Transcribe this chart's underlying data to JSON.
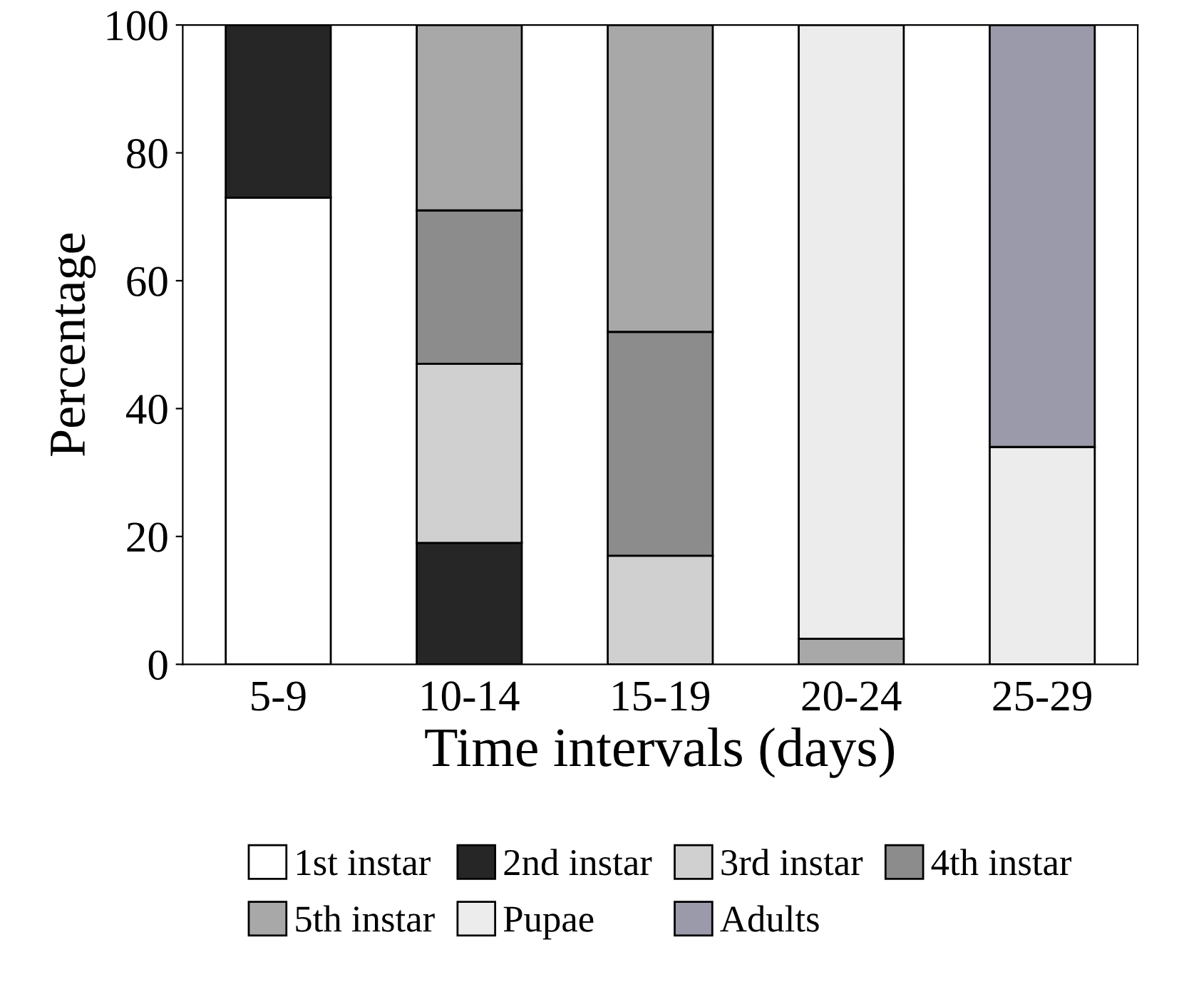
{
  "chart_data": {
    "type": "bar",
    "stacked": true,
    "xlabel": "Time intervals (days)",
    "ylabel": "Percentage",
    "categories": [
      "5-9",
      "10-14",
      "15-19",
      "20-24",
      "25-29"
    ],
    "series": [
      {
        "name": "1st instar",
        "color": "#ffffff",
        "values": [
          73,
          null,
          null,
          null,
          null
        ]
      },
      {
        "name": "2nd instar",
        "color": "#262626",
        "values": [
          27,
          19,
          null,
          null,
          null
        ]
      },
      {
        "name": "3rd instar",
        "color": "#d0d0d0",
        "values": [
          null,
          28,
          17,
          null,
          null
        ]
      },
      {
        "name": "4th instar",
        "color": "#8c8c8c",
        "values": [
          null,
          24,
          35,
          null,
          null
        ]
      },
      {
        "name": "5th instar",
        "color": "#a8a8a8",
        "values": [
          null,
          29,
          48,
          4,
          null
        ]
      },
      {
        "name": "Pupae",
        "color": "#ececec",
        "values": [
          null,
          null,
          null,
          96,
          34
        ]
      },
      {
        "name": "Adults",
        "color": "#9a9aaa",
        "values": [
          null,
          null,
          null,
          null,
          66
        ]
      }
    ],
    "ylim": [
      0,
      100
    ],
    "yticks": [
      0,
      20,
      40,
      60,
      80,
      100
    ],
    "grid": false,
    "legend": "bottom"
  }
}
